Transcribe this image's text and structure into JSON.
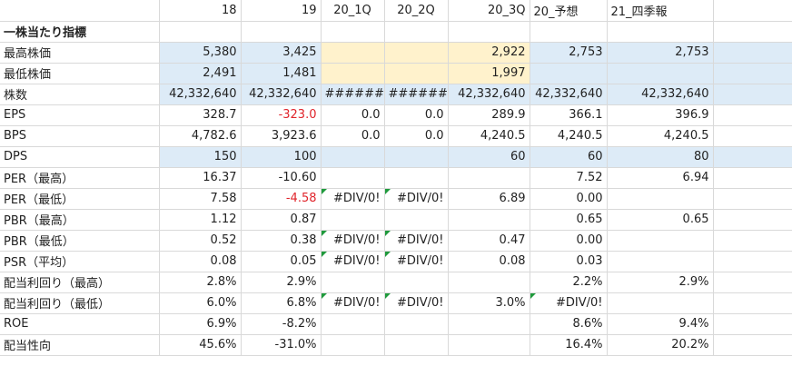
{
  "headers": [
    "",
    "18",
    "19",
    "20_1Q",
    "20_2Q",
    "20_3Q",
    "20_予想",
    "21_四季報",
    ""
  ],
  "rows": [
    {
      "label": "一株当たり指標",
      "bold": true,
      "cells": [
        "",
        "",
        "",
        "",
        "",
        "",
        "",
        ""
      ]
    },
    {
      "label": "最高株価",
      "cells": [
        "5,380",
        "3,425",
        "",
        "",
        "2,922",
        "2,753",
        "2,753",
        ""
      ],
      "fills": [
        "blue",
        "blue",
        "yellow",
        "yellow",
        "yellow",
        "blue",
        "blue",
        "blue"
      ]
    },
    {
      "label": "最低株価",
      "cells": [
        "2,491",
        "1,481",
        "",
        "",
        "1,997",
        "",
        "",
        ""
      ],
      "fills": [
        "blue",
        "blue",
        "yellow",
        "yellow",
        "yellow",
        "blue",
        "blue",
        "blue"
      ]
    },
    {
      "label": "株数",
      "cells": [
        "42,332,640",
        "42,332,640",
        "#######",
        "#######",
        "42,332,640",
        "42,332,640",
        "42,332,640",
        ""
      ],
      "fills": [
        "blue",
        "blue",
        "blue",
        "blue",
        "blue",
        "blue",
        "blue",
        "blue"
      ]
    },
    {
      "label": "EPS",
      "cells": [
        "328.7",
        "-323.0",
        "0.0",
        "0.0",
        "289.9",
        "366.1",
        "396.9",
        ""
      ],
      "red": [
        1
      ]
    },
    {
      "label": "BPS",
      "cells": [
        "4,782.6",
        "3,923.6",
        "0.0",
        "0.0",
        "4,240.5",
        "4,240.5",
        "4,240.5",
        ""
      ]
    },
    {
      "label": "DPS",
      "cells": [
        "150",
        "100",
        "",
        "",
        "60",
        "60",
        "80",
        ""
      ],
      "fills": [
        "blue",
        "blue",
        "blue",
        "blue",
        "blue",
        "blue",
        "blue",
        "blue"
      ]
    },
    {
      "label": "PER（最高）",
      "cells": [
        "16.37",
        "-10.60",
        "",
        "",
        "",
        "7.52",
        "6.94",
        ""
      ]
    },
    {
      "label": "PER（最低）",
      "cells": [
        "7.58",
        "-4.58",
        "#DIV/0!",
        "#DIV/0!",
        "6.89",
        "0.00",
        "",
        ""
      ],
      "red": [
        1
      ],
      "tri": [
        2,
        3
      ]
    },
    {
      "label": "PBR（最高）",
      "cells": [
        "1.12",
        "0.87",
        "",
        "",
        "",
        "0.65",
        "0.65",
        ""
      ]
    },
    {
      "label": "PBR（最低）",
      "cells": [
        "0.52",
        "0.38",
        "#DIV/0!",
        "#DIV/0!",
        "0.47",
        "0.00",
        "",
        ""
      ],
      "tri": [
        2,
        3
      ]
    },
    {
      "label": "PSR（平均）",
      "cells": [
        "0.08",
        "0.05",
        "#DIV/0!",
        "#DIV/0!",
        "0.08",
        "0.03",
        "",
        ""
      ],
      "tri": [
        2,
        3
      ]
    },
    {
      "label": "配当利回り（最高）",
      "cells": [
        "2.8%",
        "2.9%",
        "",
        "",
        "",
        "2.2%",
        "2.9%",
        ""
      ]
    },
    {
      "label": "配当利回り（最低）",
      "cells": [
        "6.0%",
        "6.8%",
        "#DIV/0!",
        "#DIV/0!",
        "3.0%",
        "#DIV/0!",
        "",
        ""
      ],
      "tri": [
        2,
        3,
        5
      ]
    },
    {
      "label": "ROE",
      "cells": [
        "6.9%",
        "-8.2%",
        "",
        "",
        "",
        "8.6%",
        "9.4%",
        ""
      ]
    },
    {
      "label": "配当性向",
      "cells": [
        "45.6%",
        "-31.0%",
        "",
        "",
        "",
        "16.4%",
        "20.2%",
        ""
      ]
    }
  ]
}
